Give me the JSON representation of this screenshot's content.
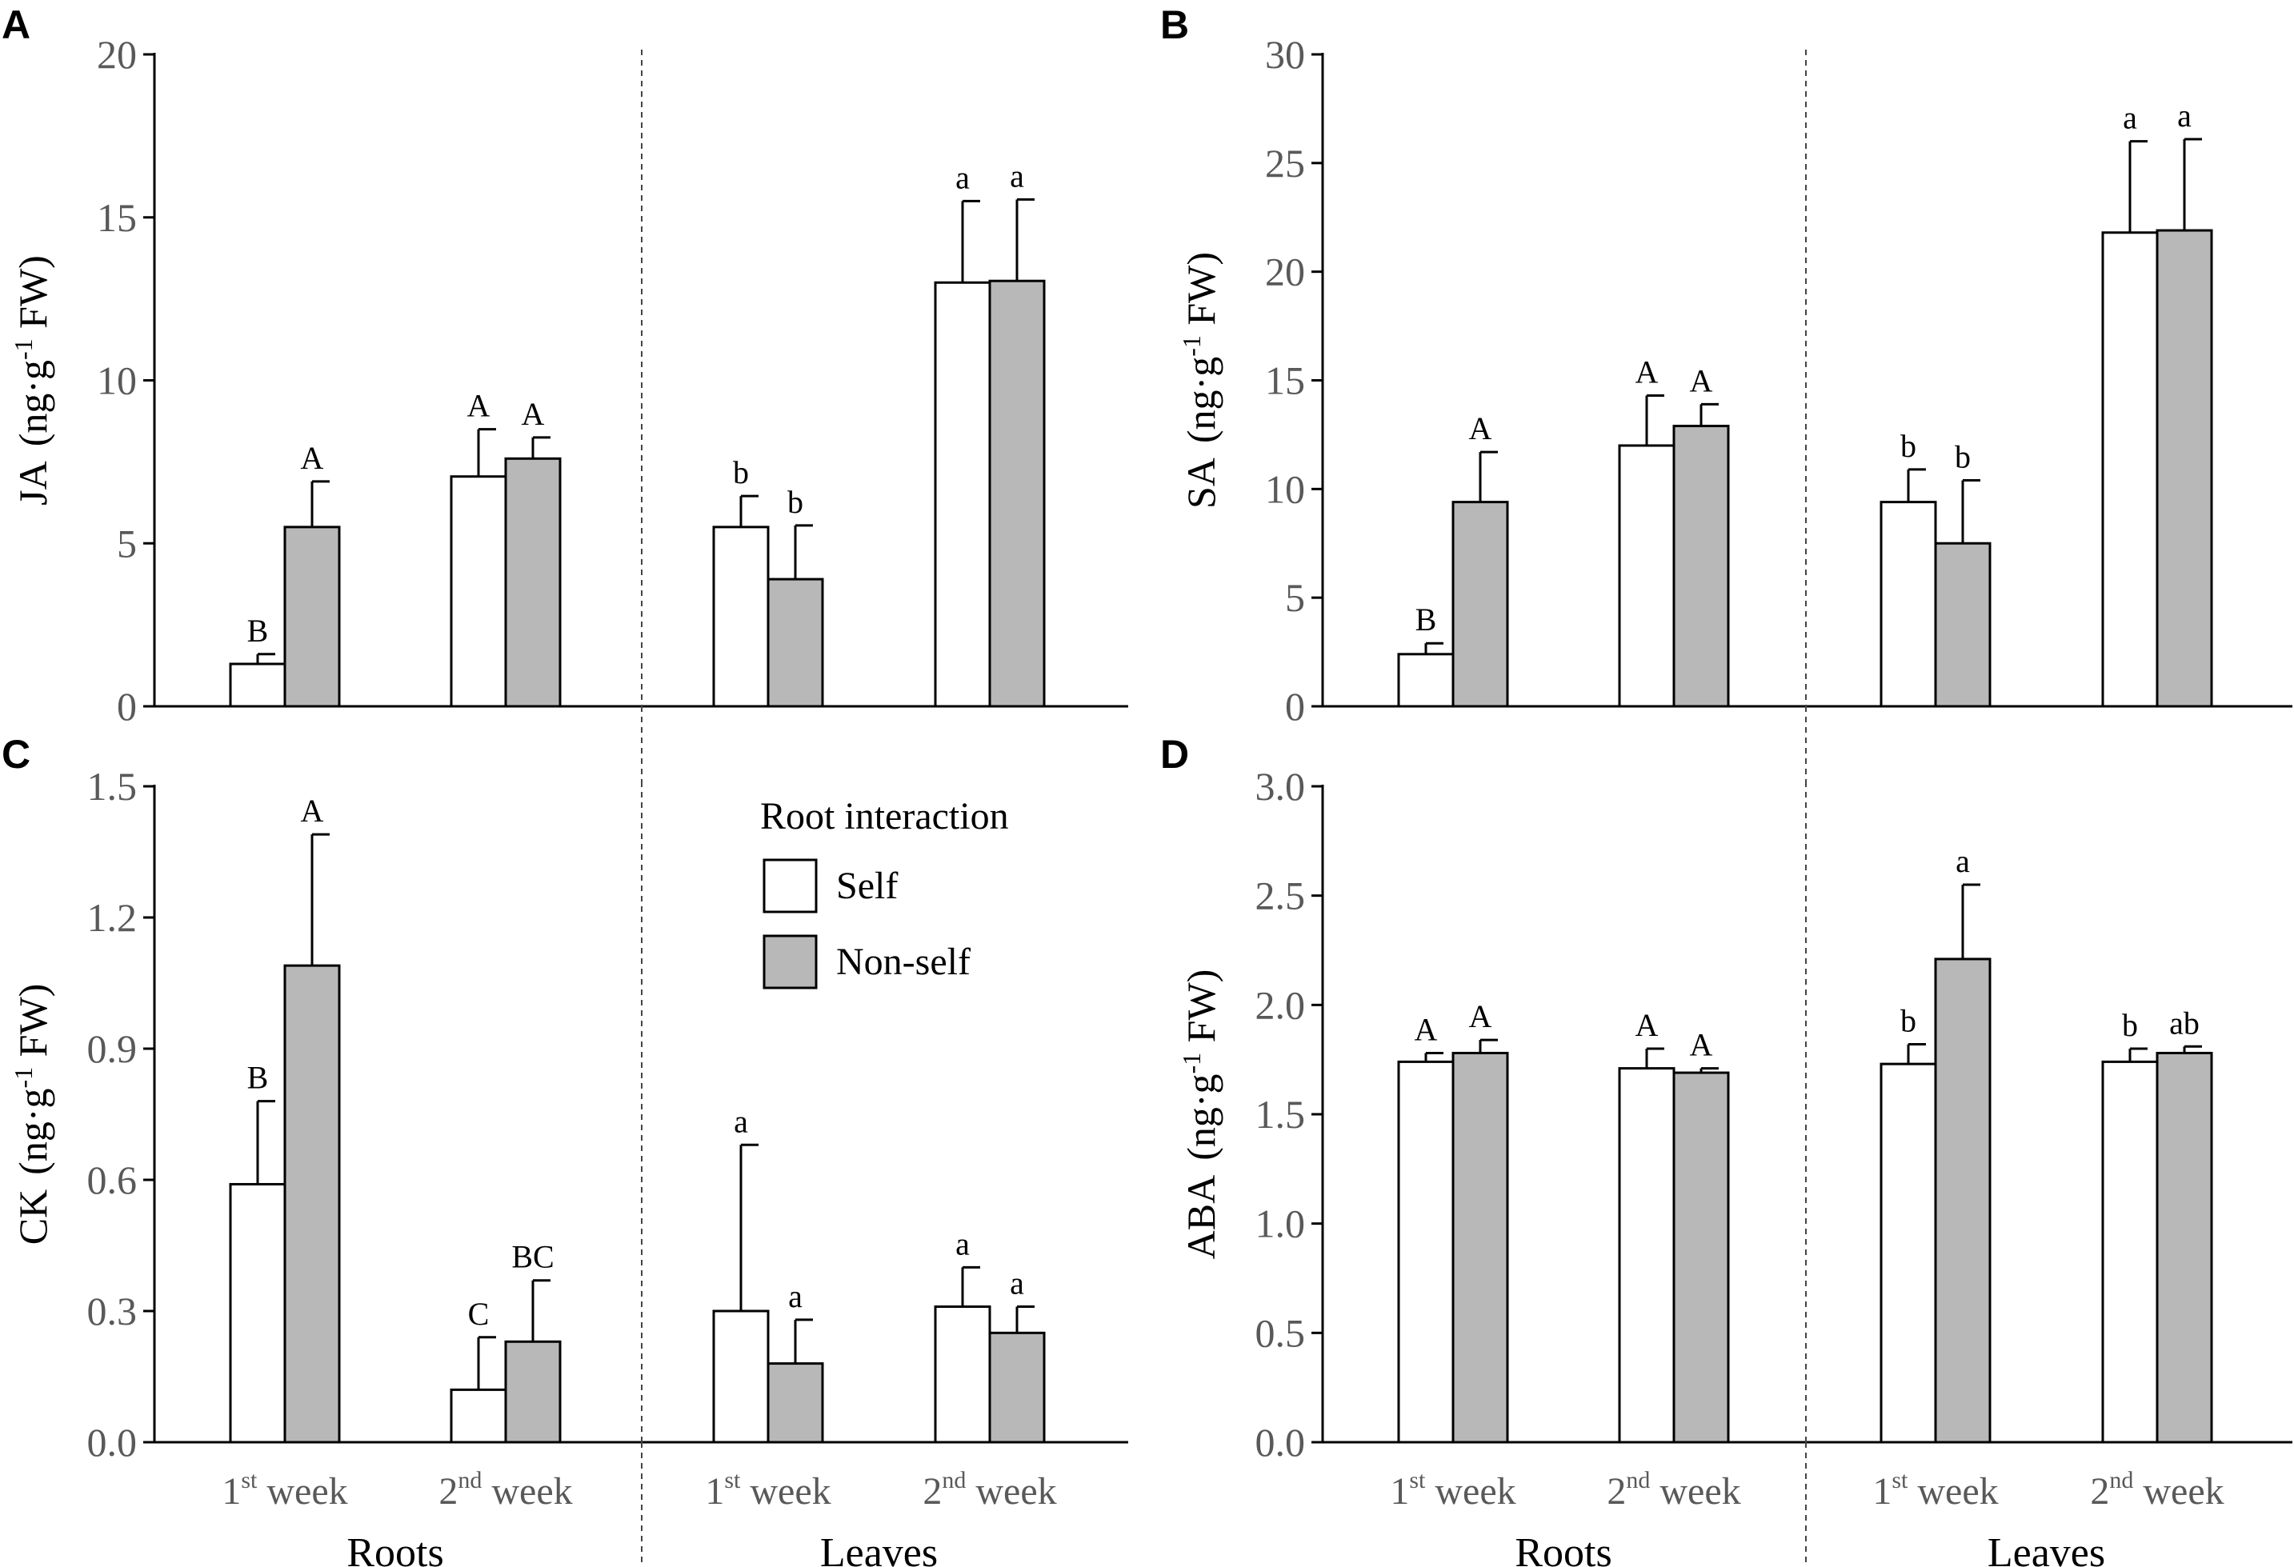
{
  "chart_data": [
    {
      "panel": "A",
      "type": "bar",
      "ylabel": "JA",
      "yunit": "(ng·g",
      "yunit_sup": "-1",
      "yunit_end": " FW)",
      "ylim": [
        0,
        20
      ],
      "yticks": [
        "0",
        "5",
        "10",
        "15",
        "20"
      ],
      "ytick_values": [
        0,
        5,
        10,
        15,
        20
      ],
      "show_xlabels": false,
      "series": [
        {
          "name": "Self",
          "values": [
            1.3,
            7.05,
            5.5,
            13.0
          ],
          "errors": [
            0.3,
            1.45,
            0.95,
            2.5
          ],
          "labels": [
            "B",
            "A",
            "b",
            "a"
          ]
        },
        {
          "name": "Non-self",
          "values": [
            5.5,
            7.6,
            3.9,
            13.05
          ],
          "errors": [
            1.4,
            0.65,
            1.65,
            2.5
          ],
          "labels": [
            "A",
            "A",
            "b",
            "a"
          ]
        }
      ]
    },
    {
      "panel": "B",
      "type": "bar",
      "ylabel": "SA",
      "yunit": "(ng·g",
      "yunit_sup": "-1",
      "yunit_end": " FW)",
      "ylim": [
        0,
        30
      ],
      "yticks": [
        "0",
        "5",
        "10",
        "15",
        "20",
        "25",
        "30"
      ],
      "ytick_values": [
        0,
        5,
        10,
        15,
        20,
        25,
        30
      ],
      "show_xlabels": false,
      "series": [
        {
          "name": "Self",
          "values": [
            2.4,
            12.0,
            9.4,
            21.8
          ],
          "errors": [
            0.5,
            2.3,
            1.5,
            4.2
          ],
          "labels": [
            "B",
            "A",
            "b",
            "a"
          ]
        },
        {
          "name": "Non-self",
          "values": [
            9.4,
            12.9,
            7.5,
            21.9
          ],
          "errors": [
            2.3,
            1.0,
            2.9,
            4.2
          ],
          "labels": [
            "A",
            "A",
            "b",
            "a"
          ]
        }
      ]
    },
    {
      "panel": "C",
      "type": "bar",
      "ylabel": "CK",
      "yunit": "(ng·g",
      "yunit_sup": "-1",
      "yunit_end": " FW)",
      "ylim": [
        0,
        1.5
      ],
      "yticks": [
        "0.0",
        "0.3",
        "0.6",
        "0.9",
        "1.2",
        "1.5"
      ],
      "ytick_values": [
        0,
        0.3,
        0.6,
        0.9,
        1.2,
        1.5
      ],
      "show_xlabels": true,
      "series": [
        {
          "name": "Self",
          "values": [
            0.59,
            0.12,
            0.3,
            0.31
          ],
          "errors": [
            0.19,
            0.12,
            0.38,
            0.09
          ],
          "labels": [
            "B",
            "C",
            "a",
            "a"
          ]
        },
        {
          "name": "Non-self",
          "values": [
            1.09,
            0.23,
            0.18,
            0.25
          ],
          "errors": [
            0.3,
            0.14,
            0.1,
            0.06
          ],
          "labels": [
            "A",
            "BC",
            "a",
            "a"
          ]
        }
      ]
    },
    {
      "panel": "D",
      "type": "bar",
      "ylabel": "ABA",
      "yunit": "(ng·g",
      "yunit_sup": "-1",
      "yunit_end": " FW)",
      "ylim": [
        0,
        3.0
      ],
      "yticks": [
        "0.0",
        "0.5",
        "1.0",
        "1.5",
        "2.0",
        "2.5",
        "3.0"
      ],
      "ytick_values": [
        0,
        0.5,
        1.0,
        1.5,
        2.0,
        2.5,
        3.0
      ],
      "show_xlabels": true,
      "series": [
        {
          "name": "Self",
          "values": [
            1.74,
            1.71,
            1.73,
            1.74
          ],
          "errors": [
            0.04,
            0.09,
            0.09,
            0.06
          ],
          "labels": [
            "A",
            "A",
            "b",
            "b"
          ]
        },
        {
          "name": "Non-self",
          "values": [
            1.78,
            1.69,
            2.21,
            1.78
          ],
          "errors": [
            0.06,
            0.02,
            0.34,
            0.03
          ],
          "labels": [
            "A",
            "A",
            "a",
            "ab"
          ]
        }
      ]
    }
  ],
  "x_categories": [
    {
      "num": "1",
      "sup": "st",
      "text": " week"
    },
    {
      "num": "2",
      "sup": "nd",
      "text": " week"
    },
    {
      "num": "1",
      "sup": "st",
      "text": " week"
    },
    {
      "num": "2",
      "sup": "nd",
      "text": " week"
    }
  ],
  "groups": [
    "Roots",
    "Leaves"
  ],
  "legend": {
    "title": "Root interaction",
    "items": [
      {
        "label": "Self",
        "color": "#ffffff"
      },
      {
        "label": "Non-self",
        "color": "#b8b8b8"
      }
    ]
  },
  "colors": {
    "self": "#ffffff",
    "nonself": "#b8b8b8",
    "axis": "#000000"
  }
}
